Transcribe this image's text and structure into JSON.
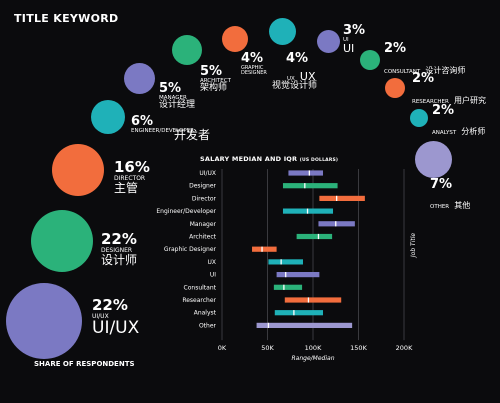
{
  "heading": "TITLE KEYWORD",
  "footer": "SHARE OF RESPONDENTS",
  "colors": {
    "purple": "#7b79c3",
    "green": "#2bb27a",
    "orange": "#f26d3d",
    "teal": "#1fb1b8",
    "lavender": "#9c97cf"
  },
  "keywords": [
    {
      "pct": "22%",
      "en": "UI/UX",
      "zh": "UI/UX",
      "color": "purple"
    },
    {
      "pct": "22%",
      "en": "DESIGNER",
      "zh": "设计师",
      "color": "green"
    },
    {
      "pct": "16%",
      "en": "DIRECTOR",
      "zh": "主管",
      "color": "orange"
    },
    {
      "pct": "6%",
      "en": "ENGINEER/DEVELOPER",
      "zh": "开发者",
      "color": "teal"
    },
    {
      "pct": "5%",
      "en": "MANAGER",
      "zh": "设计经理",
      "color": "purple"
    },
    {
      "pct": "5%",
      "en": "ARCHITECT",
      "zh": "架构师",
      "color": "green"
    },
    {
      "pct": "4%",
      "en": "GRAPHIC DESIGNER",
      "zh": "视觉设计师",
      "color": "orange"
    },
    {
      "pct": "4%",
      "en": "UX",
      "zh": "UX",
      "color": "teal"
    },
    {
      "pct": "3%",
      "en": "UI",
      "zh": "UI",
      "color": "purple"
    },
    {
      "pct": "2%",
      "en": "CONSULTANT",
      "zh": "设计咨询师",
      "color": "green"
    },
    {
      "pct": "2%",
      "en": "RESEARCHER",
      "zh": "用户研究",
      "color": "orange"
    },
    {
      "pct": "2%",
      "en": "ANALYST",
      "zh": "分析师",
      "color": "teal"
    },
    {
      "pct": "7%",
      "en": "OTHER",
      "zh": "其他",
      "color": "lavender"
    }
  ],
  "chart_data": {
    "type": "bar",
    "title": "SALARY MEDIAN AND IQR",
    "units": "(US DOLLARS)",
    "xlabel": "Range/Median",
    "ylabel": "Job Title",
    "xlim": [
      0,
      200000
    ],
    "ticks": [
      0,
      50000,
      100000,
      150000,
      200000
    ],
    "tick_labels": [
      "0K",
      "50K",
      "100K",
      "150K",
      "200K"
    ],
    "grid": true,
    "series": [
      {
        "name": "UI/UX",
        "q1": 73000,
        "median": 96000,
        "q3": 111000,
        "color": "purple"
      },
      {
        "name": "Designer",
        "q1": 67000,
        "median": 91000,
        "q3": 127000,
        "color": "green"
      },
      {
        "name": "Director",
        "q1": 107000,
        "median": 126000,
        "q3": 157000,
        "color": "orange"
      },
      {
        "name": "Engineer/Developer",
        "q1": 67000,
        "median": 94000,
        "q3": 122000,
        "color": "teal"
      },
      {
        "name": "Manager",
        "q1": 106000,
        "median": 125000,
        "q3": 146000,
        "color": "purple"
      },
      {
        "name": "Architect",
        "q1": 82000,
        "median": 106000,
        "q3": 121000,
        "color": "green"
      },
      {
        "name": "Graphic Designer",
        "q1": 33000,
        "median": 44000,
        "q3": 60000,
        "color": "orange"
      },
      {
        "name": "UX",
        "q1": 51000,
        "median": 65000,
        "q3": 89000,
        "color": "teal"
      },
      {
        "name": "UI",
        "q1": 60000,
        "median": 70000,
        "q3": 107000,
        "color": "purple"
      },
      {
        "name": "Consultant",
        "q1": 57000,
        "median": 68000,
        "q3": 88000,
        "color": "green"
      },
      {
        "name": "Researcher",
        "q1": 69000,
        "median": 95000,
        "q3": 131000,
        "color": "orange"
      },
      {
        "name": "Analyst",
        "q1": 58000,
        "median": 79000,
        "q3": 111000,
        "color": "teal"
      },
      {
        "name": "Other",
        "q1": 38000,
        "median": 51000,
        "q3": 143000,
        "color": "lavender"
      }
    ]
  }
}
